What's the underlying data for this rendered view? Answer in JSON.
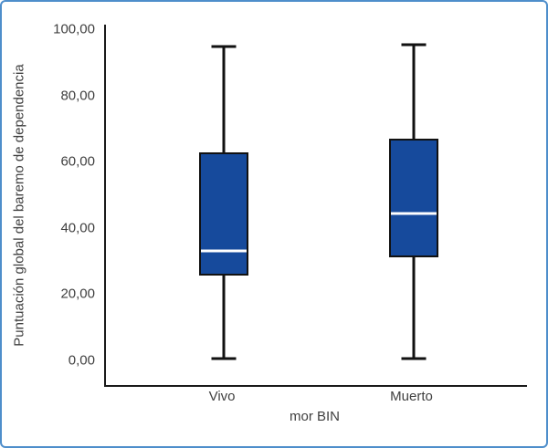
{
  "figure": {
    "border_color": "#4e8ecb",
    "background": "#ffffff"
  },
  "chart_data": {
    "type": "boxplot",
    "title": "",
    "xlabel": "mor BIN",
    "ylabel": "Puntuación global del baremo de dependencia",
    "categories": [
      "Vivo",
      "Muerto"
    ],
    "y_axis": {
      "min": -7.5,
      "max": 101.5,
      "ticks": [
        {
          "value": 100,
          "label": "100,00"
        },
        {
          "value": 80,
          "label": "80,00"
        },
        {
          "value": 60,
          "label": "60,00"
        },
        {
          "value": 40,
          "label": "40,00"
        },
        {
          "value": 20,
          "label": "20,00"
        },
        {
          "value": 0,
          "label": "0,00"
        }
      ]
    },
    "boxes": [
      {
        "category": "Vivo",
        "whisker_low": 0.5,
        "q1": 25.5,
        "median": 33,
        "q3": 63,
        "whisker_high": 95
      },
      {
        "category": "Muerto",
        "whisker_low": 0.5,
        "q1": 31,
        "median": 44.5,
        "q3": 67,
        "whisker_high": 95.5
      }
    ],
    "x_centers_pct": [
      28,
      73
    ],
    "box_fill": "#164a9c",
    "box_border": "#111111",
    "median_color": "#ffffff",
    "whisker_color": "#111111",
    "grid": false,
    "legend": false
  }
}
